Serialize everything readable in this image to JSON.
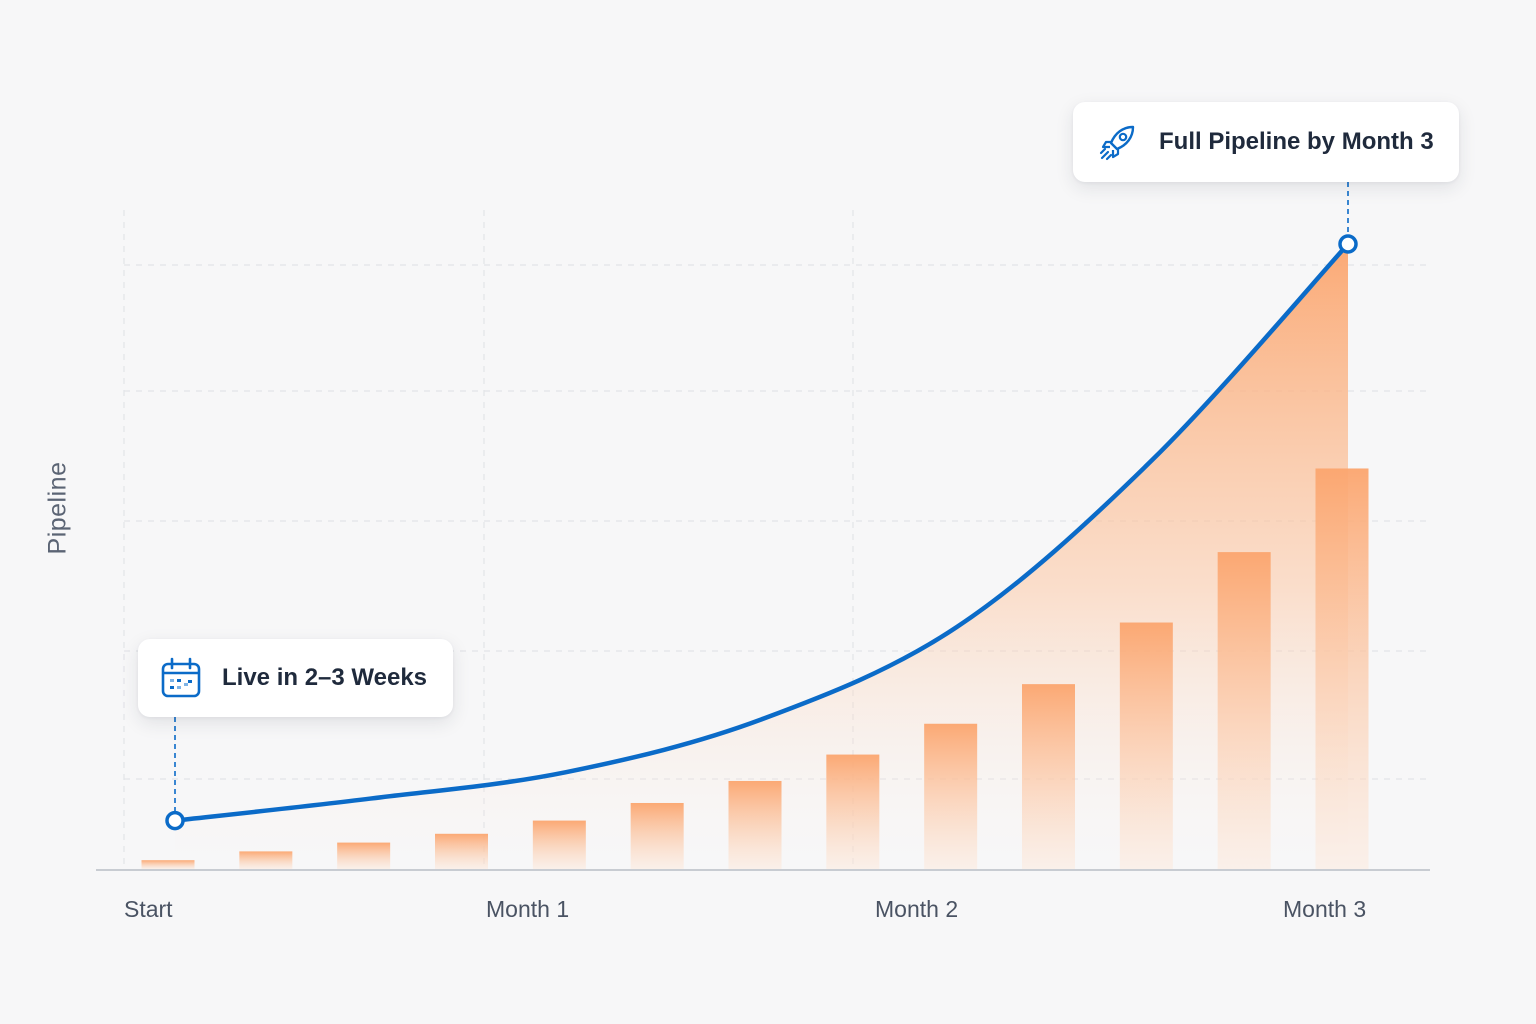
{
  "chart_data": {
    "type": "bar",
    "ylabel": "Pipeline",
    "x_ticks": [
      "Start",
      "Month 1",
      "Month 2",
      "Month 3"
    ],
    "bars": {
      "x": [
        0,
        0.25,
        0.5,
        0.75,
        1.0,
        1.25,
        1.5,
        1.75,
        2.0,
        2.25,
        2.5,
        2.75,
        3.0
      ],
      "values": [
        2,
        4,
        6,
        8,
        11,
        15,
        20,
        26,
        33,
        42,
        56,
        72,
        91
      ]
    },
    "curve": {
      "x": [
        0,
        0.5,
        1.0,
        1.5,
        2.0,
        2.5,
        3.0
      ],
      "values": [
        11,
        16,
        22,
        34,
        55,
        93,
        142
      ]
    },
    "ylim": [
      0,
      150
    ],
    "xlim": [
      -0.15,
      3.2
    ],
    "grid": true,
    "annotations": [
      {
        "text": "Live in 2–3 Weeks",
        "x": 0,
        "y": 11,
        "icon": "calendar-icon"
      },
      {
        "text": "Full Pipeline by Month 3",
        "x": 3.0,
        "y": 142,
        "icon": "rocket-icon"
      }
    ],
    "colors": {
      "curve": "#0b6bc8",
      "bar_top": "#fba56e",
      "bar_bottom": "#fde7d8",
      "area_top": "#fba56e",
      "area_bottom": "#fdf1ea",
      "grid": "#e3e4e8",
      "axis": "#b9bdc6",
      "icon": "#0b6bc8"
    }
  }
}
